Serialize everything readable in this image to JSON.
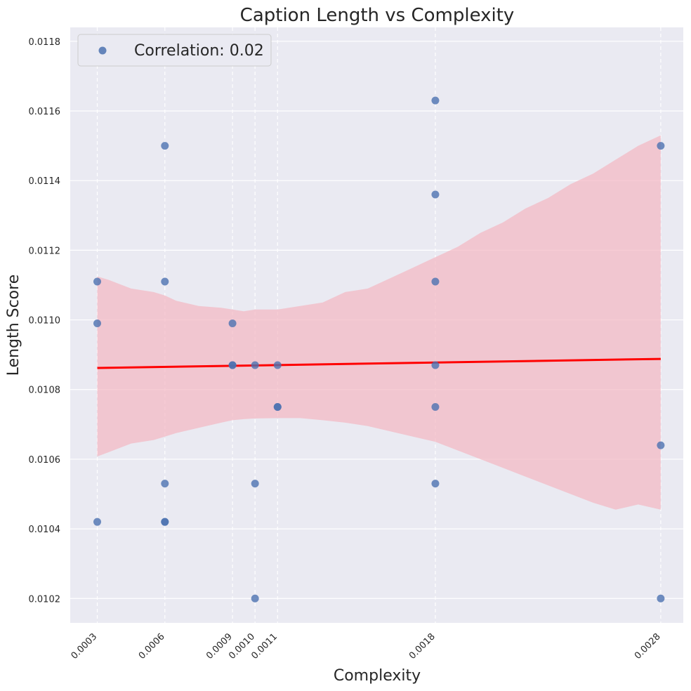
{
  "chart_data": {
    "type": "scatter",
    "title": "Caption Length vs Complexity",
    "xlabel": "Complexity",
    "ylabel": "Length Score",
    "xlim": [
      0.00018,
      0.0029
    ],
    "ylim": [
      0.01013,
      0.01184
    ],
    "x_ticks": [
      0.0003,
      0.0006,
      0.0009,
      0.001,
      0.0011,
      0.0018,
      0.0028
    ],
    "x_tick_labels": [
      "0.0003",
      "0.0006",
      "0.0009",
      "0.0010",
      "0.0011",
      "0.0018",
      "0.0028"
    ],
    "y_ticks": [
      0.0102,
      0.0104,
      0.0106,
      0.0108,
      0.011,
      0.0112,
      0.0114,
      0.0116,
      0.0118
    ],
    "y_tick_labels": [
      "0.0102",
      "0.0104",
      "0.0106",
      "0.0108",
      "0.0110",
      "0.0112",
      "0.0114",
      "0.0116",
      "0.0118"
    ],
    "grid": true,
    "x_vertical_dashed_lines_at_ticks": true,
    "legend": {
      "label": "Correlation: 0.02",
      "placement": "top-left"
    },
    "series": [
      {
        "name": "Correlation: 0.02",
        "kind": "points",
        "points": [
          {
            "x": 0.0003,
            "y": 0.01111
          },
          {
            "x": 0.0003,
            "y": 0.01099
          },
          {
            "x": 0.0003,
            "y": 0.01042
          },
          {
            "x": 0.0006,
            "y": 0.0115
          },
          {
            "x": 0.0006,
            "y": 0.01111
          },
          {
            "x": 0.0006,
            "y": 0.01053
          },
          {
            "x": 0.0006,
            "y": 0.01042
          },
          {
            "x": 0.0006,
            "y": 0.01042
          },
          {
            "x": 0.0009,
            "y": 0.01099
          },
          {
            "x": 0.0009,
            "y": 0.01087
          },
          {
            "x": 0.0009,
            "y": 0.01087
          },
          {
            "x": 0.001,
            "y": 0.01087
          },
          {
            "x": 0.001,
            "y": 0.01053
          },
          {
            "x": 0.001,
            "y": 0.0102
          },
          {
            "x": 0.0011,
            "y": 0.01087
          },
          {
            "x": 0.0011,
            "y": 0.01075
          },
          {
            "x": 0.0011,
            "y": 0.01075
          },
          {
            "x": 0.0018,
            "y": 0.01163
          },
          {
            "x": 0.0018,
            "y": 0.01136
          },
          {
            "x": 0.0018,
            "y": 0.01111
          },
          {
            "x": 0.0018,
            "y": 0.01087
          },
          {
            "x": 0.0018,
            "y": 0.01075
          },
          {
            "x": 0.0018,
            "y": 0.01053
          },
          {
            "x": 0.0028,
            "y": 0.0115
          },
          {
            "x": 0.0028,
            "y": 0.01064
          },
          {
            "x": 0.0028,
            "y": 0.0102
          }
        ]
      },
      {
        "kind": "regression_line",
        "x": [
          0.0003,
          0.0028
        ],
        "y": [
          0.010862,
          0.010888
        ]
      },
      {
        "kind": "confidence_band",
        "x": [
          0.0003,
          0.00035,
          0.00045,
          0.00055,
          0.0006,
          0.00065,
          0.00075,
          0.00085,
          0.0009,
          0.00095,
          0.001,
          0.0011,
          0.0012,
          0.0013,
          0.0014,
          0.0015,
          0.0016,
          0.0017,
          0.0018,
          0.0019,
          0.002,
          0.0021,
          0.0022,
          0.0023,
          0.0024,
          0.0025,
          0.0026,
          0.0027,
          0.0028
        ],
        "upper": [
          0.011125,
          0.011115,
          0.01109,
          0.01108,
          0.01107,
          0.011055,
          0.01104,
          0.011035,
          0.01103,
          0.011025,
          0.01103,
          0.01103,
          0.01104,
          0.01105,
          0.01108,
          0.01109,
          0.01112,
          0.01115,
          0.01118,
          0.01121,
          0.01125,
          0.01128,
          0.01132,
          0.01135,
          0.01139,
          0.01142,
          0.01146,
          0.0115,
          0.01153
        ],
        "lower": [
          0.010608,
          0.01062,
          0.010645,
          0.010655,
          0.010665,
          0.010675,
          0.01069,
          0.010705,
          0.010712,
          0.010715,
          0.010717,
          0.010718,
          0.010718,
          0.010712,
          0.010705,
          0.010695,
          0.01068,
          0.010665,
          0.01065,
          0.010625,
          0.0106,
          0.010575,
          0.01055,
          0.010525,
          0.0105,
          0.010475,
          0.010455,
          0.01047,
          0.010455
        ]
      }
    ],
    "colors": {
      "points": "#4c72b0",
      "line": "#ff0000",
      "band": "#f4b6c2",
      "plot_bg": "#eaeaf2",
      "grid": "#ffffff"
    }
  }
}
